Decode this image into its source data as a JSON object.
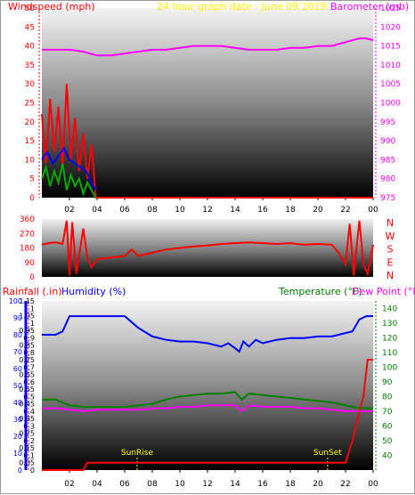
{
  "header": {
    "title": "24 hour graph date - June 09 2019",
    "title_color": "#ffff00"
  },
  "chart_data": [
    {
      "name": "wind-barometer",
      "type": "line",
      "left_axis": {
        "label": "Windspeed (mph)",
        "ticks": [
          0,
          5,
          10,
          15,
          20,
          25,
          30,
          35,
          40,
          45,
          50
        ],
        "ylim": [
          0,
          50
        ],
        "color": "#ff0000"
      },
      "right_axis": {
        "label": "Barometer (mb)",
        "ticks": [
          975,
          980,
          985,
          990,
          995,
          1000,
          1005,
          1010,
          1015,
          1020,
          1025
        ],
        "ylim": [
          975,
          1025
        ],
        "color": "#ff00ff"
      },
      "xticks": [
        "02",
        "04",
        "06",
        "08",
        "10",
        "12",
        "14",
        "16",
        "18",
        "20",
        "22",
        "00"
      ],
      "xlim": [
        0,
        24
      ],
      "series": [
        {
          "axis": "right",
          "color": "#ff00ff",
          "x": [
            0,
            1,
            2,
            3,
            4,
            5,
            6,
            7,
            8,
            9,
            10,
            11,
            12,
            13,
            14,
            15,
            16,
            17,
            18,
            19,
            20,
            21,
            22,
            23,
            23.5,
            24
          ],
          "y": [
            1014,
            1014,
            1014,
            1013.5,
            1012.5,
            1012.5,
            1013,
            1013.5,
            1014,
            1014,
            1014.5,
            1015,
            1015,
            1015,
            1014.5,
            1014,
            1014,
            1014,
            1014.5,
            1014.5,
            1015,
            1015,
            1016,
            1017,
            1017,
            1016.5
          ]
        },
        {
          "axis": "left",
          "color": "#ff0000",
          "x": [
            0,
            0.3,
            0.6,
            0.9,
            1.2,
            1.5,
            1.8,
            2.1,
            2.4,
            2.7,
            3.0,
            3.3,
            3.6,
            3.9,
            4.2,
            24
          ],
          "y": [
            22,
            9,
            26,
            12,
            24,
            8,
            30,
            10,
            21,
            7,
            17,
            5,
            14,
            0,
            0,
            0
          ]
        },
        {
          "axis": "left",
          "color": "#0000ff",
          "x": [
            0,
            0.4,
            0.8,
            1.2,
            1.6,
            2.0,
            2.4,
            2.8,
            3.2,
            3.6,
            3.9
          ],
          "y": [
            10,
            12,
            9,
            11,
            13,
            10,
            9,
            8,
            7,
            4,
            2
          ]
        },
        {
          "axis": "left",
          "color": "#00aa00",
          "x": [
            0,
            0.3,
            0.6,
            0.9,
            1.2,
            1.5,
            1.8,
            2.1,
            2.4,
            2.7,
            3.0,
            3.3,
            3.6,
            3.9
          ],
          "y": [
            5,
            8,
            3,
            7,
            4,
            9,
            2,
            6,
            3,
            5,
            1,
            4,
            2,
            0
          ]
        }
      ]
    },
    {
      "name": "wind-direction",
      "type": "line",
      "left_axis": {
        "label": "",
        "ticks": [
          0,
          90,
          180,
          270,
          360
        ],
        "ylim": [
          0,
          360
        ],
        "color": "#ff0000"
      },
      "right_axis": {
        "label": "",
        "ticks": [
          "N",
          "E",
          "S",
          "W",
          "N"
        ],
        "color": "#ff0000"
      },
      "xlim": [
        0,
        24
      ],
      "series": [
        {
          "axis": "left",
          "color": "#ff0000",
          "x": [
            0,
            0.5,
            1,
            1.5,
            1.8,
            2.0,
            2.2,
            2.5,
            3.0,
            3.3,
            3.6,
            4,
            5,
            6,
            6.5,
            7,
            8,
            9,
            10,
            11,
            12,
            13,
            14,
            15,
            16,
            17,
            18,
            19,
            20,
            21,
            21.5,
            22,
            22.3,
            22.6,
            23,
            23.3,
            23.6,
            24
          ],
          "y": [
            200,
            210,
            215,
            205,
            350,
            10,
            340,
            20,
            300,
            120,
            60,
            110,
            120,
            130,
            170,
            130,
            150,
            170,
            180,
            190,
            195,
            205,
            210,
            215,
            210,
            205,
            210,
            200,
            205,
            200,
            150,
            80,
            330,
            10,
            350,
            80,
            20,
            200
          ]
        }
      ]
    },
    {
      "name": "rain-humidity-temperature",
      "type": "line",
      "legend": [
        {
          "label": "Rainfall (.in)",
          "color": "#ff0000"
        },
        {
          "label": "Humidity (%)",
          "color": "#0000ff"
        },
        {
          "label": "Temperature (°F)",
          "color": "#008000"
        },
        {
          "label": "Dew Point (°F)",
          "color": "#ff00ff"
        }
      ],
      "left_axis_rain": {
        "ticks": [
          0,
          0.05,
          0.1,
          0.15,
          0.2,
          0.25,
          0.3,
          0.35,
          0.4,
          0.45,
          0.5,
          0.55,
          0.6,
          0.65,
          0.7,
          0.75,
          0.8,
          0.85,
          0.9,
          0.95,
          1,
          1.05,
          1.1,
          1.15
        ],
        "tick_labels": [
          "0",
          "0.05",
          "0.1",
          "0.15",
          "0.2",
          "0.25",
          "0.3",
          "0.35",
          "0.4",
          "0.45",
          "0.5",
          "0.55",
          "0.6",
          "0.65",
          "0.7",
          "0.75",
          "0.8",
          "0.85",
          "0.9",
          "0.95",
          "1",
          "1.05",
          "1.1",
          "1.15"
        ],
        "ylim": [
          0,
          1.15
        ],
        "color": "#ff0000"
      },
      "left_axis_humidity": {
        "ticks": [
          0,
          10,
          20,
          30,
          40,
          50,
          60,
          70,
          80,
          90,
          100
        ],
        "ylim": [
          0,
          100
        ],
        "color": "#0000ff"
      },
      "right_axis": {
        "ticks": [
          40,
          50,
          60,
          70,
          80,
          90,
          100,
          110,
          120,
          130,
          140
        ],
        "ylim": [
          30,
          145
        ],
        "color": "#008000"
      },
      "xticks": [
        "02",
        "04",
        "06",
        "08",
        "10",
        "12",
        "14",
        "16",
        "18",
        "20",
        "22",
        "00"
      ],
      "xlim": [
        0,
        24
      ],
      "annotations": [
        {
          "label": "SunRise",
          "x": 6.9
        },
        {
          "label": "SunSet",
          "x": 20.7
        }
      ],
      "series": [
        {
          "name": "Humidity (%)",
          "axis": "humidity",
          "color": "#0000ff",
          "x": [
            0,
            1,
            1.5,
            2,
            3,
            4,
            5,
            6,
            7,
            8,
            9,
            10,
            11,
            12,
            13,
            13.5,
            14,
            14.3,
            14.6,
            15,
            15.5,
            16,
            17,
            18,
            19,
            20,
            21,
            21.5,
            22,
            22.5,
            23,
            23.5,
            24
          ],
          "y": [
            80,
            80,
            82,
            91,
            91,
            91,
            91,
            91,
            84,
            79,
            77,
            76,
            76,
            75,
            73,
            75,
            72,
            70,
            76,
            73,
            77,
            75,
            77,
            78,
            78,
            79,
            79,
            80,
            81,
            82,
            89,
            91,
            91
          ]
        },
        {
          "name": "Temperature (°F)",
          "axis": "temp",
          "color": "#008000",
          "x": [
            0,
            1,
            2,
            3,
            4,
            5,
            6,
            7,
            8,
            9,
            10,
            11,
            12,
            13,
            14,
            14.5,
            15,
            16,
            17,
            18,
            19,
            20,
            21,
            22,
            23,
            24
          ],
          "y": [
            78,
            78,
            74,
            73,
            73,
            73,
            73,
            74,
            75,
            78,
            80,
            81,
            82,
            82,
            83,
            78,
            82,
            81,
            80,
            79,
            78,
            77,
            76,
            74,
            72,
            72
          ]
        },
        {
          "name": "Dew Point (°F)",
          "axis": "temp",
          "color": "#ff00ff",
          "x": [
            0,
            1,
            2,
            3,
            4,
            5,
            6,
            7,
            8,
            9,
            10,
            11,
            12,
            13,
            14,
            14.5,
            15,
            16,
            17,
            18,
            19,
            20,
            21,
            22,
            23,
            24
          ],
          "y": [
            72,
            72,
            71,
            70,
            71,
            71,
            71,
            71,
            72,
            72,
            73,
            73,
            74,
            74,
            74,
            70,
            74,
            73,
            73,
            73,
            72,
            72,
            71,
            70,
            70,
            70
          ]
        },
        {
          "name": "Rainfall (.in)",
          "axis": "rain",
          "color": "#ff0000",
          "x": [
            0,
            2.5,
            3.0,
            3.3,
            5,
            10,
            15,
            20,
            22,
            22.5,
            23,
            23.3,
            23.6,
            24
          ],
          "y": [
            0,
            0,
            0,
            0.05,
            0.05,
            0.05,
            0.05,
            0.05,
            0.05,
            0.2,
            0.4,
            0.5,
            0.75,
            0.75
          ]
        }
      ]
    }
  ]
}
